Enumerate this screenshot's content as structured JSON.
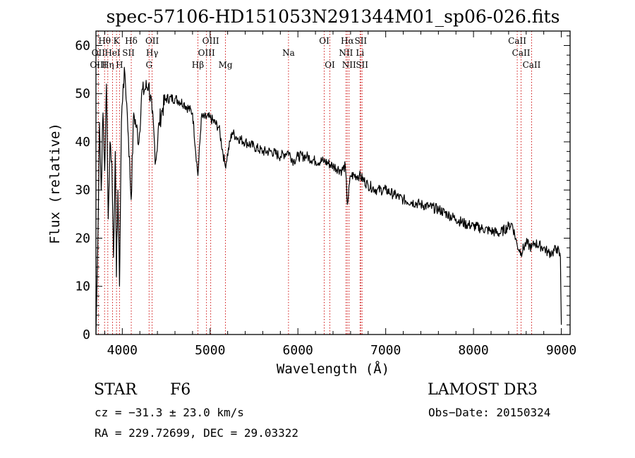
{
  "chart_data": {
    "type": "line",
    "title": "spec-57106-HD151053N291344M01_sp06-026.fits",
    "xlabel": "Wavelength (Å)",
    "ylabel": "Flux (relative)",
    "xlim": [
      3700,
      9100
    ],
    "ylim": [
      0,
      63
    ],
    "xticks": [
      4000,
      5000,
      6000,
      7000,
      8000,
      9000
    ],
    "yticks": [
      0,
      10,
      20,
      30,
      40,
      50,
      60
    ],
    "grid": false,
    "series": [
      {
        "name": "flux",
        "x": [
          3700,
          3720,
          3740,
          3760,
          3780,
          3800,
          3820,
          3840,
          3860,
          3880,
          3900,
          3920,
          3933,
          3950,
          3968,
          3990,
          4010,
          4030,
          4050,
          4070,
          4101,
          4130,
          4160,
          4190,
          4220,
          4260,
          4300,
          4340,
          4380,
          4420,
          4460,
          4500,
          4600,
          4700,
          4800,
          4861,
          4900,
          5000,
          5100,
          5172,
          5250,
          5300,
          5400,
          5500,
          5600,
          5700,
          5800,
          5890,
          5950,
          6000,
          6100,
          6200,
          6300,
          6400,
          6500,
          6540,
          6563,
          6600,
          6700,
          6800,
          6900,
          7000,
          7100,
          7200,
          7300,
          7400,
          7500,
          7600,
          7700,
          7800,
          7900,
          8000,
          8100,
          8200,
          8300,
          8400,
          8440,
          8498,
          8542,
          8600,
          8662,
          8700,
          8800,
          8850,
          8900,
          8950,
          8990,
          9000
        ],
        "y": [
          0,
          18,
          44,
          30,
          46,
          34,
          52,
          24,
          40,
          36,
          16,
          38,
          12,
          30,
          10,
          44,
          52,
          54,
          48,
          41,
          28,
          46,
          43,
          40,
          50,
          51,
          52,
          46,
          36,
          44,
          47,
          49,
          49,
          48,
          46,
          33,
          45,
          45,
          43,
          35,
          42,
          41,
          40,
          39,
          38,
          38,
          37,
          38,
          36,
          37,
          37,
          36,
          36,
          35,
          34,
          35,
          27,
          33,
          33,
          31,
          30,
          30,
          29,
          28,
          27.5,
          27,
          26.5,
          26,
          25,
          24,
          23,
          22.5,
          22,
          21.5,
          21,
          22.5,
          23,
          18.5,
          17,
          19,
          18,
          19,
          18,
          17,
          17,
          18,
          16,
          2
        ]
      }
    ],
    "lines": {
      "top_row": [
        {
          "label": "Hθ",
          "wave": 3798
        },
        {
          "label": "K",
          "wave": 3934
        },
        {
          "label": "Hδ",
          "wave": 4102
        },
        {
          "label": "OII",
          "wave": 4340
        },
        {
          "label": "OIII",
          "wave": 5007
        },
        {
          "label": "OI",
          "wave": 6300
        },
        {
          "label": "Hα",
          "wave": 6563
        },
        {
          "label": "SII",
          "wave": 6716
        },
        {
          "label": "CaII",
          "wave": 8498
        }
      ],
      "mid_row": [
        {
          "label": "OII",
          "wave": 3727
        },
        {
          "label": "HeI",
          "wave": 3889
        },
        {
          "label": "SII",
          "wave": 4070
        },
        {
          "label": "Hγ",
          "wave": 4340
        },
        {
          "label": "OIII",
          "wave": 4959
        },
        {
          "label": "Na",
          "wave": 5893
        },
        {
          "label": "NII",
          "wave": 6548
        },
        {
          "label": "Li",
          "wave": 6708
        },
        {
          "label": "CaII",
          "wave": 8542
        }
      ],
      "low_row": [
        {
          "label": "OIII",
          "wave": 3727
        },
        {
          "label": "Hη",
          "wave": 3835
        },
        {
          "label": "H",
          "wave": 3968
        },
        {
          "label": "G",
          "wave": 4305
        },
        {
          "label": "Hβ",
          "wave": 4861
        },
        {
          "label": "Mg",
          "wave": 5175
        },
        {
          "label": "OI",
          "wave": 6364
        },
        {
          "label": "NII",
          "wave": 6583
        },
        {
          "label": "SII",
          "wave": 6731
        },
        {
          "label": "CaII",
          "wave": 8662
        }
      ],
      "dotted_waves": [
        3727,
        3798,
        3835,
        3889,
        3934,
        3968,
        4102,
        4305,
        4340,
        4861,
        4959,
        5007,
        5175,
        5893,
        6300,
        6364,
        6548,
        6563,
        6583,
        6708,
        6716,
        6731,
        8498,
        8542,
        8662
      ]
    }
  },
  "footer": {
    "object_class": "STAR",
    "subclass": "F6",
    "survey": "LAMOST DR3",
    "redshift": "cz = −31.3 ± 23.0 km/s",
    "obs_date": "Obs−Date: 20150324",
    "coords": "RA = 229.72699, DEC =  29.03322"
  },
  "colors": {
    "spectrum": "#000000",
    "line_markers": "#cc0000",
    "axes": "#000000"
  }
}
